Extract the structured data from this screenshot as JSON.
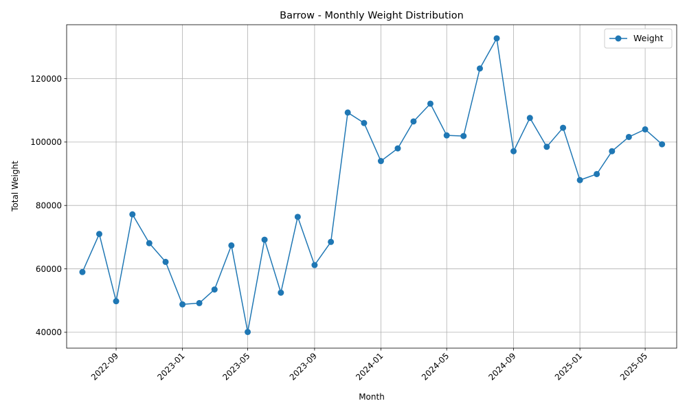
{
  "chart_data": {
    "type": "line",
    "title": "Barrow - Monthly Weight Distribution",
    "xlabel": "Month",
    "ylabel": "Total Weight",
    "grid": true,
    "legend_position": "top-right",
    "x": [
      "2022-07",
      "2022-08",
      "2022-09",
      "2022-10",
      "2022-11",
      "2022-12",
      "2023-01",
      "2023-02",
      "2023-03",
      "2023-04",
      "2023-05",
      "2023-06",
      "2023-07",
      "2023-08",
      "2023-09",
      "2023-10",
      "2023-11",
      "2023-12",
      "2024-01",
      "2024-02",
      "2024-03",
      "2024-04",
      "2024-05",
      "2024-06",
      "2024-07",
      "2024-08",
      "2024-09",
      "2024-10",
      "2024-11",
      "2024-12",
      "2025-01",
      "2025-02",
      "2025-03",
      "2025-04",
      "2025-05",
      "2025-06"
    ],
    "xlim": [
      "2022-06-02",
      "2025-06-28"
    ],
    "ylim": [
      35000,
      137000
    ],
    "x_ticks": [
      "2022-09",
      "2023-01",
      "2023-05",
      "2023-09",
      "2024-01",
      "2024-05",
      "2024-09",
      "2025-01",
      "2025-05"
    ],
    "y_ticks": [
      40000,
      60000,
      80000,
      100000,
      120000
    ],
    "series": [
      {
        "name": "Weight",
        "color": "#1f77b4",
        "marker": "circle",
        "values": [
          59000,
          71000,
          49800,
          77200,
          68100,
          62200,
          48800,
          49200,
          53500,
          67400,
          40100,
          69200,
          52500,
          76400,
          61200,
          68500,
          109300,
          106000,
          94000,
          98000,
          106500,
          112100,
          102100,
          101900,
          123200,
          132700,
          97100,
          107600,
          98500,
          104500,
          88000,
          89900,
          97100,
          101600,
          104000,
          99300
        ]
      }
    ]
  }
}
